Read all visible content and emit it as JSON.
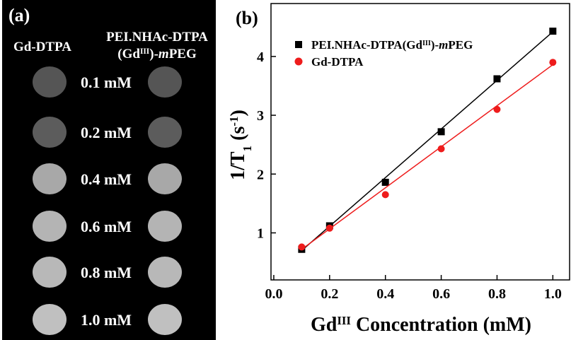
{
  "panel_a": {
    "label": "(a)",
    "column_headers": [
      [
        "Gd-DTPA"
      ],
      [
        "PEI.NHAc-DTPA"
      ],
      [
        "(Gd",
        "III",
        ")-",
        "m",
        "PEG"
      ]
    ],
    "concentrations": [
      "0.1 mM",
      "0.2 mM",
      "0.4 mM",
      "0.6 mM",
      "0.8 mM",
      "1.0 mM"
    ]
  },
  "chart_data": {
    "type": "scatter",
    "label": "(b)",
    "x_label": [
      "Gd",
      "III",
      " Concentration  (mM)"
    ],
    "y_label": [
      "1/T",
      "1",
      " (s",
      "-1",
      ")"
    ],
    "xlim": [
      -0.01,
      1.06
    ],
    "ylim": [
      0.2,
      4.9
    ],
    "xticks": [
      {
        "value": 0,
        "label": "0.0"
      },
      0.2,
      0.4,
      0.6,
      0.8,
      {
        "value": 1,
        "label": "1.0"
      }
    ],
    "yticks": [
      1,
      2,
      3,
      4
    ],
    "legend": "upper left",
    "series": [
      {
        "name": [
          "PEI.NHAc-DTPA(Gd",
          "III",
          ")-",
          "m",
          "PEG"
        ],
        "color": "#000000",
        "marker": "square",
        "x": [
          0.1,
          0.2,
          0.4,
          0.6,
          0.8,
          1.0
        ],
        "values": [
          0.72,
          1.12,
          1.86,
          2.72,
          3.62,
          4.43
        ],
        "fit": {
          "x": [
            0.1,
            1.0
          ],
          "values": [
            0.7,
            4.42
          ]
        }
      },
      {
        "name": [
          "Gd-DTPA"
        ],
        "color": "#ee1c1c",
        "marker": "circle",
        "x": [
          0.1,
          0.2,
          0.4,
          0.6,
          0.8,
          1.0
        ],
        "values": [
          0.76,
          1.08,
          1.65,
          2.43,
          3.1,
          3.9
        ],
        "fit": {
          "x": [
            0.1,
            1.0
          ],
          "values": [
            0.72,
            3.86
          ]
        }
      }
    ]
  }
}
